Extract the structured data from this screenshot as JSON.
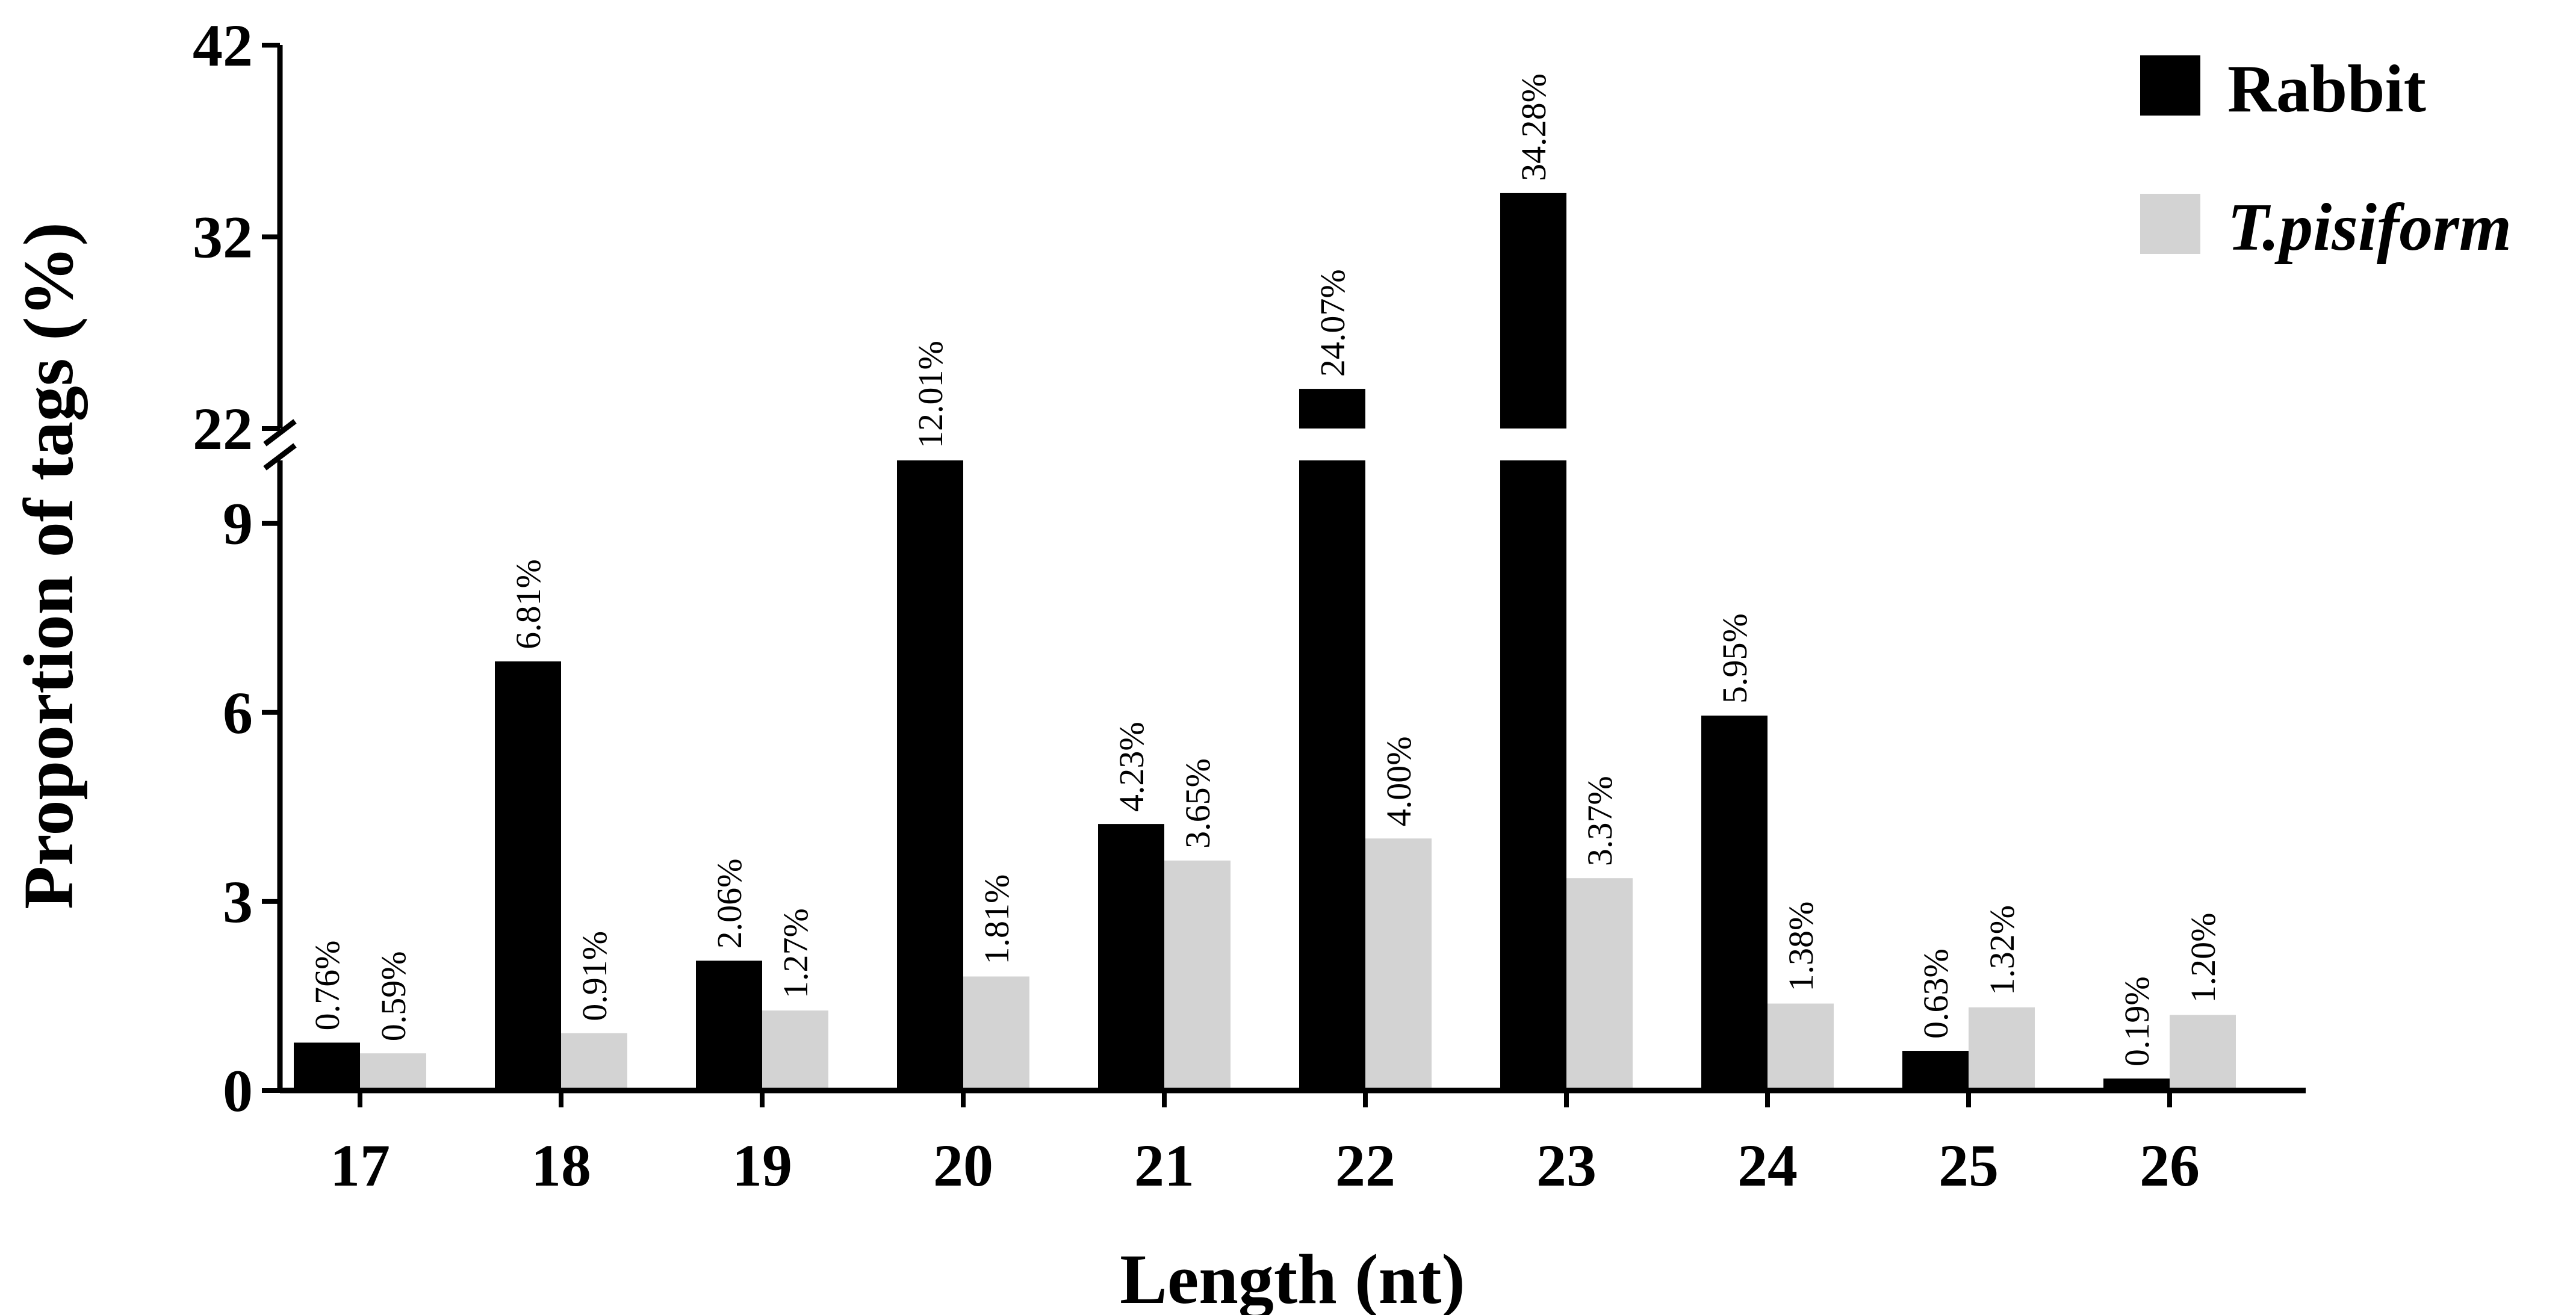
{
  "chart_data": {
    "type": "bar",
    "categories": [
      "17",
      "18",
      "19",
      "20",
      "21",
      "22",
      "23",
      "24",
      "25",
      "26"
    ],
    "series": [
      {
        "name": "Rabbit",
        "color": "#000000",
        "values": [
          0.76,
          6.81,
          2.06,
          12.01,
          4.23,
          24.07,
          34.28,
          5.95,
          0.63,
          0.19
        ],
        "labels": [
          "0.76%",
          "6.81%",
          "2.06%",
          "12.01%",
          "4.23%",
          "24.07%",
          "34.28%",
          "5.95%",
          "0.63%",
          "0.19%"
        ]
      },
      {
        "name": "T.pisiform",
        "color": "#d3d3d3",
        "values": [
          0.59,
          0.91,
          1.27,
          1.81,
          3.65,
          4.0,
          3.37,
          1.38,
          1.32,
          1.2
        ],
        "labels": [
          "0.59%",
          "0.91%",
          "1.27%",
          "1.81%",
          "3.65%",
          "4.00%",
          "3.37%",
          "1.38%",
          "1.32%",
          "1.20%"
        ]
      }
    ],
    "xlabel": "Length (nt)",
    "ylabel": "Proportion of tags (%)",
    "y_axis_break": {
      "lower_segment": {
        "ylim": [
          0,
          10
        ],
        "ticks": [
          "0",
          "3",
          "6",
          "9"
        ]
      },
      "upper_segment": {
        "ylim": [
          22,
          42
        ],
        "ticks": [
          "22",
          "32",
          "42"
        ]
      }
    },
    "legend": {
      "placement": "top-right"
    },
    "grid": false
  }
}
